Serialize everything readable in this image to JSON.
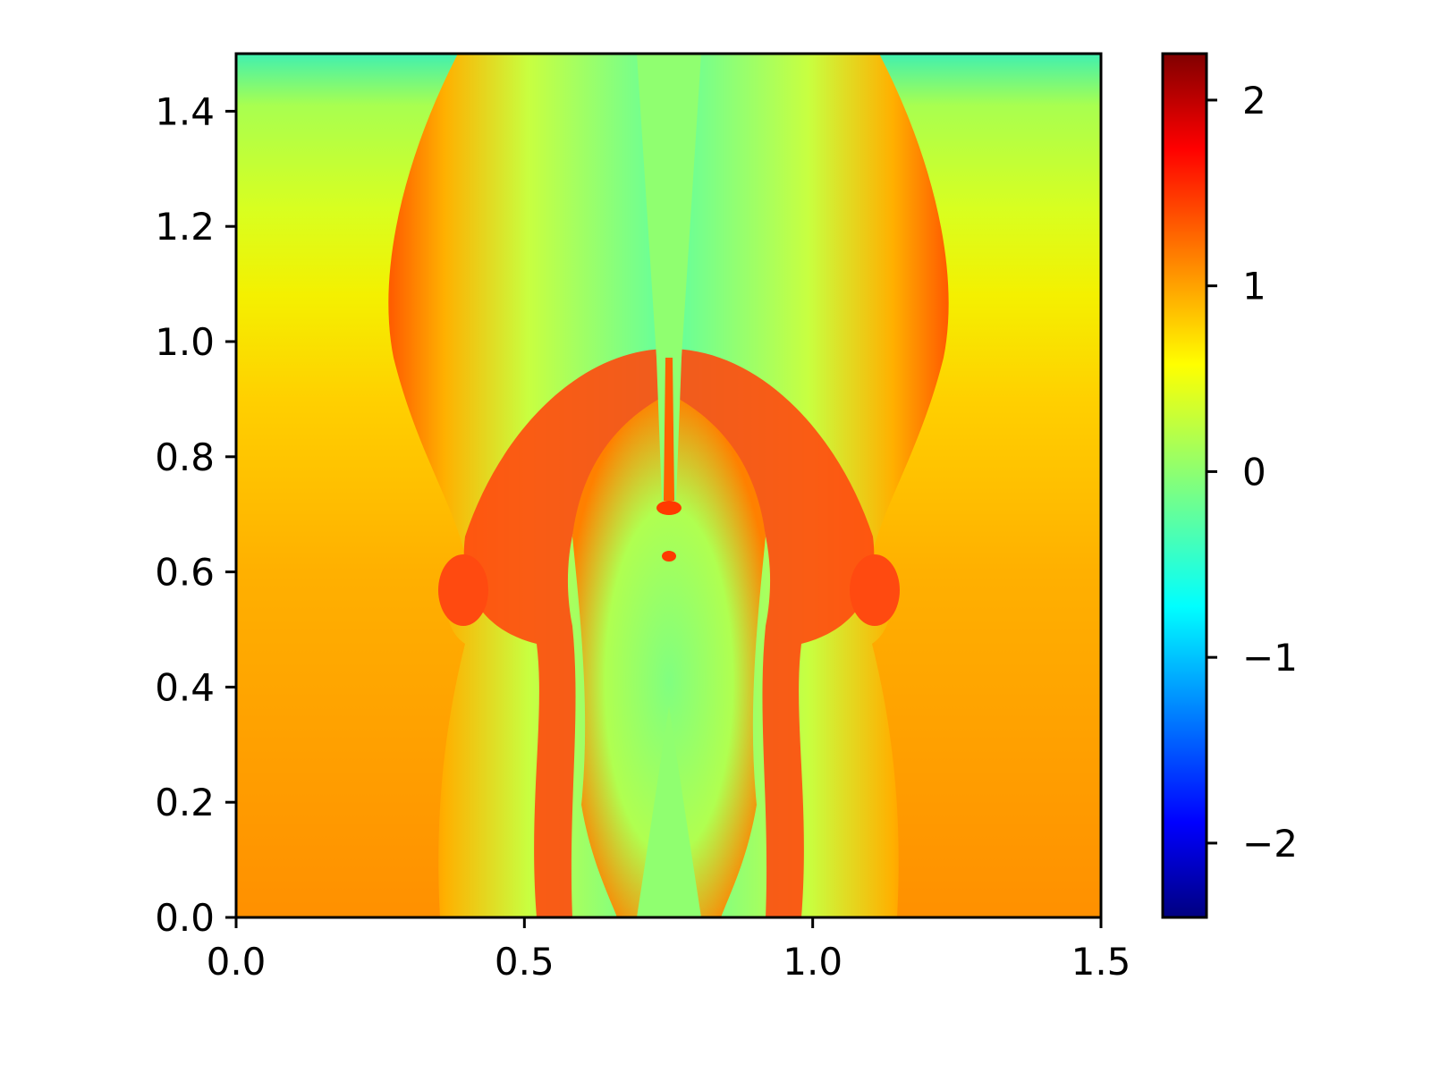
{
  "chart_data": {
    "type": "heatmap",
    "title": "",
    "xlabel": "",
    "ylabel": "",
    "xlim": [
      0.0,
      1.5
    ],
    "ylim": [
      0.0,
      1.5
    ],
    "x_ticks": [
      {
        "value": 0.0,
        "label": "0.0"
      },
      {
        "value": 0.5,
        "label": "0.5"
      },
      {
        "value": 1.0,
        "label": "1.0"
      },
      {
        "value": 1.5,
        "label": "1.5"
      }
    ],
    "y_ticks": [
      {
        "value": 0.0,
        "label": "0.0"
      },
      {
        "value": 0.2,
        "label": "0.2"
      },
      {
        "value": 0.4,
        "label": "0.4"
      },
      {
        "value": 0.6,
        "label": "0.6"
      },
      {
        "value": 0.8,
        "label": "0.8"
      },
      {
        "value": 1.0,
        "label": "1.0"
      },
      {
        "value": 1.2,
        "label": "1.2"
      },
      {
        "value": 1.4,
        "label": "1.4"
      }
    ],
    "colormap": "jet",
    "colorbar": {
      "range": [
        -2.4,
        2.25
      ],
      "ticks": [
        {
          "value": 2,
          "label": "2"
        },
        {
          "value": 1,
          "label": "1"
        },
        {
          "value": 0,
          "label": "0"
        },
        {
          "value": -1,
          "label": "−1"
        },
        {
          "value": -2,
          "label": "−2"
        }
      ]
    },
    "grid": false,
    "legend": "none"
  }
}
